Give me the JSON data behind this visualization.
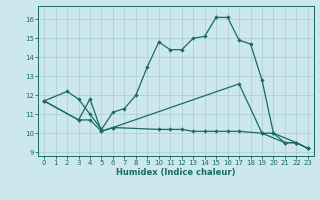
{
  "xlabel": "Humidex (Indice chaleur)",
  "bg_color": "#cce8ec",
  "grid_color": "#aacccc",
  "line_color": "#1a6b60",
  "xlim": [
    -0.5,
    23.5
  ],
  "ylim": [
    8.8,
    16.7
  ],
  "yticks": [
    9,
    10,
    11,
    12,
    13,
    14,
    15,
    16
  ],
  "xticks": [
    0,
    1,
    2,
    3,
    4,
    5,
    6,
    7,
    8,
    9,
    10,
    11,
    12,
    13,
    14,
    15,
    16,
    17,
    18,
    19,
    20,
    21,
    22,
    23
  ],
  "line1_x": [
    0,
    2,
    3,
    4,
    5,
    6,
    7,
    8,
    9,
    10,
    11,
    12,
    13,
    14,
    15,
    16,
    17,
    18,
    19,
    20,
    22,
    23
  ],
  "line1_y": [
    11.7,
    12.2,
    11.8,
    11.0,
    10.2,
    11.1,
    11.3,
    12.0,
    13.5,
    14.8,
    14.4,
    14.4,
    15.0,
    15.1,
    16.1,
    16.1,
    14.9,
    14.7,
    12.8,
    10.0,
    9.5,
    9.2
  ],
  "line2_x": [
    0,
    3,
    4,
    5,
    6,
    17,
    19,
    21,
    22,
    23
  ],
  "line2_y": [
    11.7,
    10.7,
    11.8,
    10.1,
    10.3,
    12.6,
    10.0,
    9.5,
    9.5,
    9.2
  ],
  "line3_x": [
    0,
    3,
    4,
    5,
    6,
    10,
    11,
    12,
    13,
    14,
    15,
    16,
    17,
    19,
    20,
    21,
    22,
    23
  ],
  "line3_y": [
    11.7,
    10.7,
    10.7,
    10.1,
    10.3,
    10.2,
    10.2,
    10.2,
    10.1,
    10.1,
    10.1,
    10.1,
    10.1,
    10.0,
    10.0,
    9.5,
    9.5,
    9.2
  ]
}
